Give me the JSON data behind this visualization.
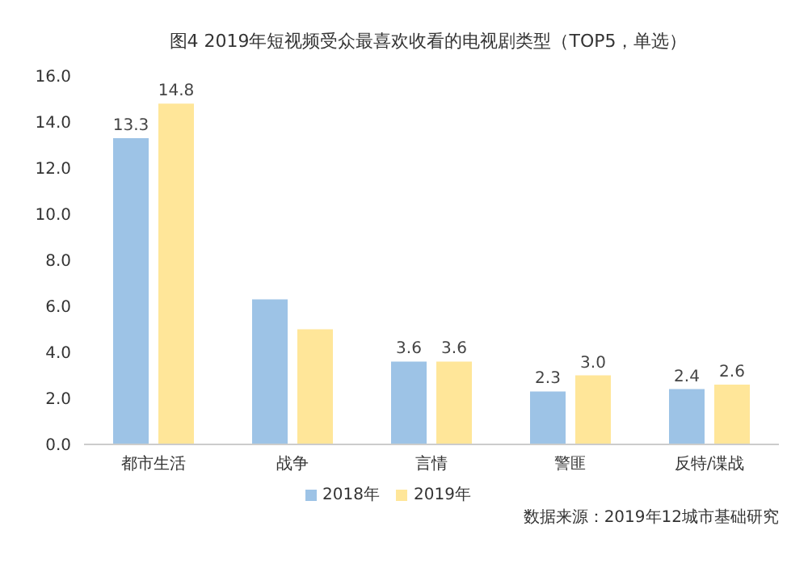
{
  "chart_data": {
    "type": "bar",
    "title": "图4 2019年短视频受众最喜欢收看的电视剧类型（TOP5，单选）",
    "categories": [
      "都市生活",
      "战争",
      "言情",
      "警匪",
      "反特/谍战"
    ],
    "series": [
      {
        "name": "2018年",
        "color": "#9dc3e6",
        "values": [
          13.3,
          6.3,
          3.6,
          2.3,
          2.4
        ],
        "value_labels": [
          "13.3",
          null,
          "3.6",
          "2.3",
          "2.4"
        ]
      },
      {
        "name": "2019年",
        "color": "#ffe699",
        "values": [
          14.8,
          5.0,
          3.6,
          3.0,
          2.6
        ],
        "value_labels": [
          "14.8",
          null,
          "3.6",
          "3.0",
          "2.6"
        ]
      }
    ],
    "ylim": [
      0,
      16
    ],
    "yticks": [
      {
        "value": 0,
        "label": "0.0"
      },
      {
        "value": 2,
        "label": "2.0"
      },
      {
        "value": 4,
        "label": "4.0"
      },
      {
        "value": 6,
        "label": "6.0"
      },
      {
        "value": 8,
        "label": "8.0"
      },
      {
        "value": 10,
        "label": "10.0"
      },
      {
        "value": 12,
        "label": "12.0"
      },
      {
        "value": 14,
        "label": "14.0"
      },
      {
        "value": 16,
        "label": "16.0"
      }
    ],
    "grid": false,
    "legend": "bottom",
    "annotations": [
      "数据来源：2019年12城市基础研究"
    ]
  }
}
